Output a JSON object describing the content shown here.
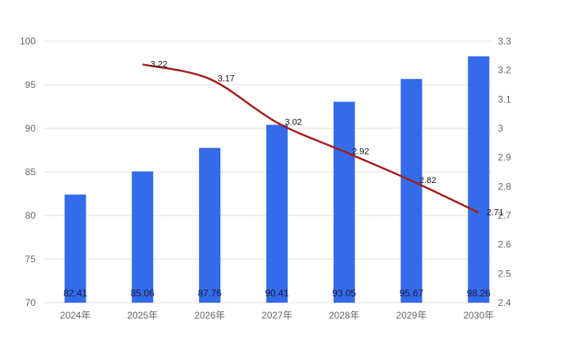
{
  "chart_data": {
    "type": "bar+line",
    "categories": [
      "2024年",
      "2025年",
      "2026年",
      "2027年",
      "2028年",
      "2029年",
      "2030年"
    ],
    "series": [
      {
        "type": "bar",
        "axis": "left",
        "values": [
          82.41,
          85.06,
          87.76,
          90.41,
          93.05,
          95.67,
          98.26
        ],
        "color": "#346bea"
      },
      {
        "type": "line",
        "axis": "right",
        "smooth": true,
        "values": [
          null,
          3.22,
          3.17,
          3.02,
          2.92,
          2.82,
          2.71
        ],
        "color": "#a31d1d"
      }
    ],
    "left_axis": {
      "ylim": [
        70,
        100
      ],
      "ticks": [
        70,
        75,
        80,
        85,
        90,
        95,
        100
      ]
    },
    "right_axis": {
      "ylim": [
        2.4,
        3.3
      ],
      "ticks": [
        "2.4",
        "2.5",
        "2.6",
        "2.7",
        "2.8",
        "2.9",
        "3",
        "3.1",
        "3.2",
        "3.3"
      ]
    },
    "grid": true,
    "gridColor": "#e3e3e3"
  }
}
